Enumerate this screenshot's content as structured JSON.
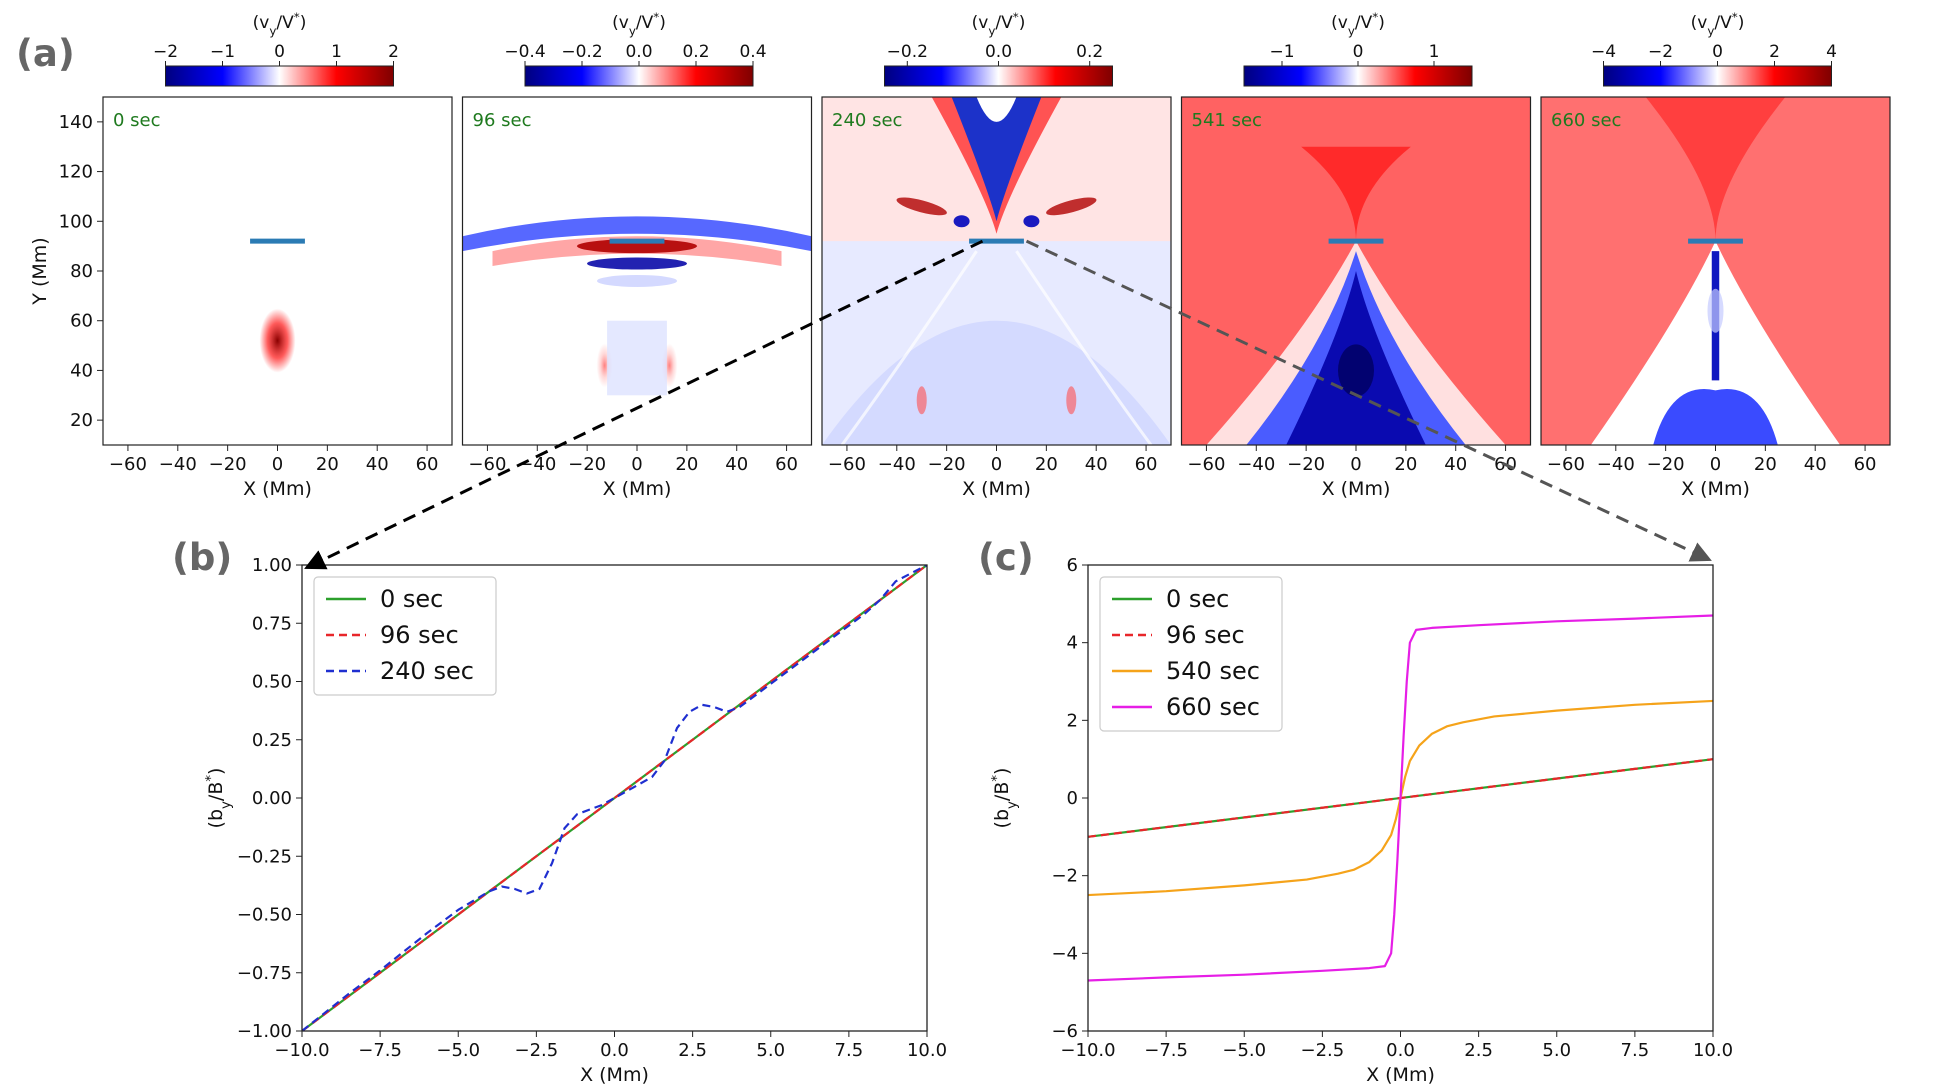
{
  "figure": {
    "panel_labels": {
      "a": "(a)",
      "b": "(b)",
      "c": "(c)"
    }
  },
  "chart_data": [
    {
      "type": "heatmap",
      "id": "panel-a",
      "colorbar_label": "(v_y/V*)",
      "xlabel": "X (Mm)",
      "ylabel": "Y (Mm)",
      "xlim": [
        -70,
        70
      ],
      "ylim": [
        10,
        150
      ],
      "xticks": [
        -60,
        -40,
        -20,
        0,
        20,
        40,
        60
      ],
      "yticks": [
        20,
        40,
        60,
        80,
        100,
        120,
        140
      ],
      "current_sheet": {
        "x": [
          -11,
          11
        ],
        "y": 92,
        "color": "#2b7bb4"
      },
      "colors": {
        "negative": "#00007f",
        "zero": "#ffffff",
        "positive": "#7f0000"
      },
      "subplots": [
        {
          "time_label": "0 sec",
          "clim": [
            -2,
            2
          ],
          "cbar_ticks": [
            -2,
            -1,
            0,
            1,
            2
          ],
          "cbar_labels": [
            "−2",
            "−1",
            "0",
            "1",
            "2"
          ]
        },
        {
          "time_label": "96 sec",
          "clim": [
            -0.4,
            0.4
          ],
          "cbar_ticks": [
            -0.4,
            -0.2,
            0,
            0.2,
            0.4
          ],
          "cbar_labels": [
            "−0.4",
            "−0.2",
            "0.0",
            "0.2",
            "0.4"
          ]
        },
        {
          "time_label": "240 sec",
          "clim": [
            -0.25,
            0.25
          ],
          "cbar_ticks": [
            -0.2,
            0,
            0.2
          ],
          "cbar_labels": [
            "−0.2",
            "0.0",
            "0.2"
          ]
        },
        {
          "time_label": "541 sec",
          "clim": [
            -1.5,
            1.5
          ],
          "cbar_ticks": [
            -1,
            0,
            1
          ],
          "cbar_labels": [
            "−1",
            "0",
            "1"
          ]
        },
        {
          "time_label": "660 sec",
          "clim": [
            -4,
            4
          ],
          "cbar_ticks": [
            -4,
            -2,
            0,
            2,
            4
          ],
          "cbar_labels": [
            "−4",
            "−2",
            "0",
            "2",
            "4"
          ]
        }
      ]
    },
    {
      "type": "line",
      "id": "panel-b",
      "xlabel": "X (Mm)",
      "ylabel": "(b_y/B*)",
      "xlim": [
        -10,
        10
      ],
      "ylim": [
        -1,
        1
      ],
      "xticks": [
        -10,
        -7.5,
        -5,
        -2.5,
        0,
        2.5,
        5,
        7.5,
        10
      ],
      "xtick_labels": [
        "−10.0",
        "−7.5",
        "−5.0",
        "−2.5",
        "0.0",
        "2.5",
        "5.0",
        "7.5",
        "10.0"
      ],
      "yticks": [
        -1,
        -0.75,
        -0.5,
        -0.25,
        0,
        0.25,
        0.5,
        0.75,
        1
      ],
      "ytick_labels": [
        "−1.00",
        "−0.75",
        "−0.50",
        "−0.25",
        "0.00",
        "0.25",
        "0.50",
        "0.75",
        "1.00"
      ],
      "legend_position": "top-left",
      "series": [
        {
          "name": "0 sec",
          "color": "#2ca02c",
          "dash": false,
          "x": [
            -10,
            10
          ],
          "y": [
            -1,
            1
          ]
        },
        {
          "name": "96 sec",
          "color": "#e8262a",
          "dash": true,
          "x": [
            -10,
            10
          ],
          "y": [
            -1,
            1
          ]
        },
        {
          "name": "240 sec",
          "color": "#1f2fd0",
          "dash": true,
          "x": [
            -10,
            -8.5,
            -7.5,
            -6,
            -5,
            -4,
            -3.6,
            -3.2,
            -2.8,
            -2.4,
            -2,
            -1.6,
            -1.2,
            -0.8,
            -0.4,
            0,
            0.4,
            0.8,
            1.2,
            1.6,
            2,
            2.4,
            2.8,
            3.2,
            3.6,
            4,
            5,
            6,
            7,
            7.5,
            8,
            8.5,
            9,
            10
          ],
          "y": [
            -1,
            -0.84,
            -0.74,
            -0.58,
            -0.48,
            -0.4,
            -0.38,
            -0.39,
            -0.41,
            -0.39,
            -0.28,
            -0.13,
            -0.07,
            -0.05,
            -0.03,
            0,
            0.03,
            0.06,
            0.09,
            0.16,
            0.3,
            0.37,
            0.4,
            0.39,
            0.37,
            0.39,
            0.49,
            0.59,
            0.69,
            0.74,
            0.79,
            0.85,
            0.93,
            1
          ]
        }
      ]
    },
    {
      "type": "line",
      "id": "panel-c",
      "xlabel": "X (Mm)",
      "ylabel": "(b_y/B*)",
      "xlim": [
        -10,
        10
      ],
      "ylim": [
        -6,
        6
      ],
      "xticks": [
        -10,
        -7.5,
        -5,
        -2.5,
        0,
        2.5,
        5,
        7.5,
        10
      ],
      "xtick_labels": [
        "−10.0",
        "−7.5",
        "−5.0",
        "−2.5",
        "0.0",
        "2.5",
        "5.0",
        "7.5",
        "10.0"
      ],
      "yticks": [
        -6,
        -4,
        -2,
        0,
        2,
        4,
        6
      ],
      "ytick_labels": [
        "−6",
        "−4",
        "−2",
        "0",
        "2",
        "4",
        "6"
      ],
      "legend_position": "top-left",
      "series": [
        {
          "name": "0 sec",
          "color": "#2ca02c",
          "dash": false,
          "x": [
            -10,
            10
          ],
          "y": [
            -1,
            1
          ]
        },
        {
          "name": "96 sec",
          "color": "#e8262a",
          "dash": true,
          "x": [
            -10,
            10
          ],
          "y": [
            -1,
            1
          ]
        },
        {
          "name": "540 sec",
          "color": "#f5a31a",
          "dash": false,
          "x": [
            -10,
            -7.5,
            -5,
            -3,
            -2,
            -1.5,
            -1,
            -0.6,
            -0.3,
            -0.15,
            0,
            0.15,
            0.3,
            0.6,
            1,
            1.5,
            2,
            3,
            5,
            7.5,
            10
          ],
          "y": [
            -2.5,
            -2.4,
            -2.25,
            -2.1,
            -1.95,
            -1.85,
            -1.65,
            -1.35,
            -0.95,
            -0.55,
            0,
            0.55,
            0.95,
            1.35,
            1.65,
            1.85,
            1.95,
            2.1,
            2.25,
            2.4,
            2.5
          ]
        },
        {
          "name": "660 sec",
          "color": "#e61ee6",
          "dash": false,
          "x": [
            -10,
            -7.5,
            -5,
            -2.5,
            -1,
            -0.5,
            -0.3,
            -0.2,
            -0.1,
            0,
            0.1,
            0.2,
            0.3,
            0.5,
            1,
            2.5,
            5,
            7.5,
            10
          ],
          "y": [
            -4.7,
            -4.62,
            -4.55,
            -4.45,
            -4.38,
            -4.33,
            -4.0,
            -3.0,
            -1.6,
            0,
            1.6,
            3.0,
            4.0,
            4.33,
            4.38,
            4.45,
            4.55,
            4.62,
            4.7
          ]
        }
      ]
    }
  ]
}
